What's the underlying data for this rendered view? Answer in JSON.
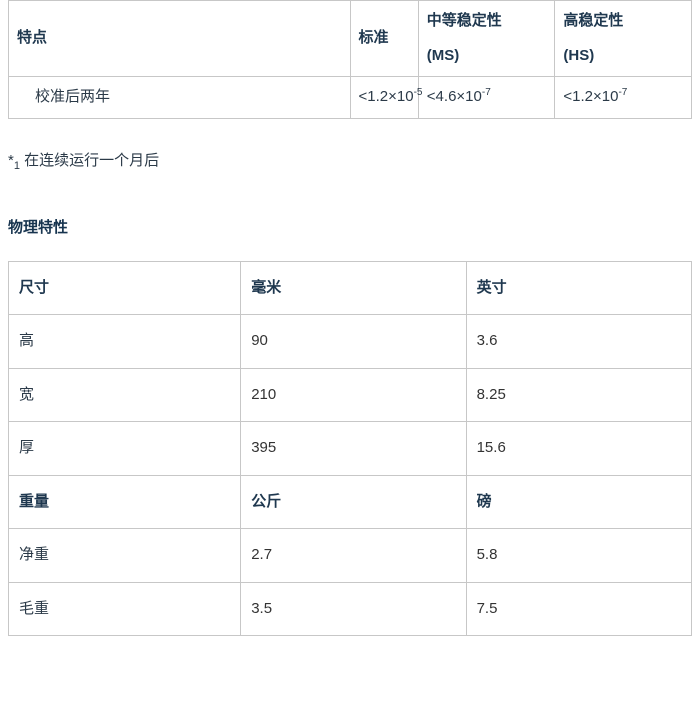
{
  "colors": {
    "page_bg": "#ffffff",
    "border": "#c7c7c7",
    "text": "#2b3a48",
    "header_text": "#1f384f",
    "title_text": "#17344f"
  },
  "typography": {
    "body_fontsize_pt": 11,
    "header_fontweight": 700,
    "line_height": 1.9
  },
  "stability_table": {
    "type": "table",
    "columns": [
      {
        "key": "feature",
        "label": "特点",
        "sublabel": "",
        "width_pct": 50
      },
      {
        "key": "std",
        "label": "标准",
        "sublabel": "",
        "width_pct": 10
      },
      {
        "key": "ms",
        "label": "中等稳定性",
        "sublabel": "(MS)",
        "width_pct": 20
      },
      {
        "key": "hs",
        "label": "高稳定性",
        "sublabel": "(HS)",
        "width_pct": 20
      }
    ],
    "rows": [
      {
        "label": "校准后两年",
        "std": {
          "prefix": "<1.2×10",
          "exp": "-5"
        },
        "ms": {
          "prefix": "<4.6×10",
          "exp": "-7"
        },
        "hs": {
          "prefix": "<1.2×10",
          "exp": "-7"
        }
      }
    ]
  },
  "footnote": {
    "marker": "*",
    "subscript": "1",
    "text": "在连续运行一个月后"
  },
  "section_title": "物理特性",
  "physical_table": {
    "type": "table",
    "col_widths_pct": [
      34,
      33,
      33
    ],
    "headers_top": {
      "c0": "尺寸",
      "c1": "毫米",
      "c2": "英寸"
    },
    "headers_mid": {
      "c0": "重量",
      "c1": "公斤",
      "c2": "磅"
    },
    "dim_rows": [
      {
        "label": "高",
        "mm": "90",
        "in": "3.6"
      },
      {
        "label": "宽",
        "mm": "210",
        "in": "8.25"
      },
      {
        "label": "厚",
        "mm": "395",
        "in": "15.6"
      }
    ],
    "weight_rows": [
      {
        "label": "净重",
        "kg": "2.7",
        "lb": "5.8"
      },
      {
        "label": "毛重",
        "kg": "3.5",
        "lb": "7.5"
      }
    ]
  }
}
